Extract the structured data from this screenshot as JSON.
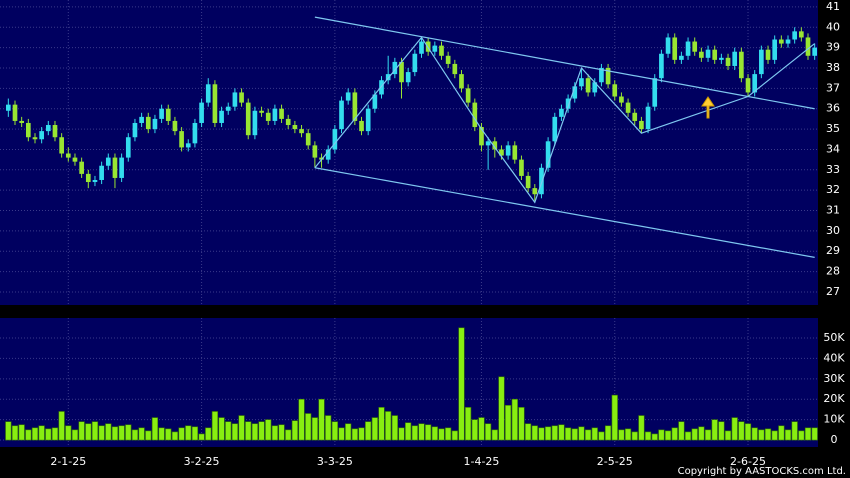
{
  "chart_data": {
    "type": "candlestick",
    "categories": [
      null,
      null,
      null,
      null,
      null,
      null,
      null,
      null,
      null,
      "2-1-25",
      null,
      null,
      null,
      null,
      null,
      null,
      null,
      null,
      null,
      null,
      null,
      null,
      null,
      null,
      null,
      null,
      null,
      null,
      null,
      "3-2-25",
      null,
      null,
      null,
      null,
      null,
      null,
      null,
      null,
      null,
      null,
      null,
      null,
      null,
      null,
      null,
      null,
      null,
      null,
      null,
      "3-3-25",
      null,
      null,
      null,
      null,
      null,
      null,
      null,
      null,
      null,
      null,
      null,
      null,
      null,
      null,
      null,
      null,
      null,
      null,
      null,
      null,
      null,
      "1-4-25",
      null,
      null,
      null,
      null,
      null,
      null,
      null,
      null,
      null,
      null,
      null,
      null,
      null,
      null,
      null,
      null,
      null,
      null,
      null,
      "2-5-25",
      null,
      null,
      null,
      null,
      null,
      null,
      null,
      null,
      null,
      null,
      null,
      null,
      null,
      null,
      null,
      null,
      null,
      null,
      null,
      "2-6-25",
      null,
      null,
      null,
      null,
      null,
      null,
      null,
      null,
      null,
      null
    ],
    "open": [
      35.9,
      36.2,
      35.4,
      35.3,
      34.6,
      34.5,
      34.9,
      35.2,
      34.6,
      33.8,
      33.6,
      33.4,
      32.8,
      32.4,
      32.5,
      33.2,
      33.6,
      32.6,
      33.6,
      34.6,
      35.3,
      35.6,
      35.0,
      35.5,
      36.0,
      35.4,
      34.9,
      34.1,
      34.3,
      35.3,
      36.3,
      37.2,
      35.3,
      35.9,
      36.1,
      36.8,
      36.3,
      34.7,
      35.9,
      35.8,
      35.4,
      36.0,
      35.5,
      35.2,
      35.0,
      34.8,
      34.2,
      33.6,
      33.5,
      34.0,
      35.0,
      36.4,
      36.8,
      35.4,
      34.9,
      36.0,
      36.7,
      37.4,
      37.7,
      38.3,
      37.3,
      37.8,
      38.7,
      39.3,
      38.8,
      39.1,
      38.6,
      38.2,
      37.7,
      37.0,
      36.3,
      35.1,
      34.2,
      34.4,
      34.0,
      33.7,
      34.2,
      33.5,
      32.7,
      32.1,
      31.8,
      33.1,
      34.4,
      35.6,
      36.0,
      36.5,
      37.1,
      37.5,
      36.8,
      37.3,
      38.0,
      37.2,
      36.6,
      36.3,
      35.8,
      35.4,
      35.0,
      36.1,
      37.5,
      38.7,
      39.5,
      38.4,
      38.6,
      39.3,
      38.8,
      38.5,
      38.9,
      38.4,
      38.5,
      38.1,
      38.8,
      37.5,
      36.8,
      37.7,
      38.9,
      38.4,
      39.4,
      39.2,
      39.4,
      39.8,
      39.5,
      38.6
    ],
    "high": [
      36.5,
      36.4,
      35.6,
      35.5,
      34.8,
      35.1,
      35.4,
      35.4,
      34.8,
      34.1,
      33.8,
      33.6,
      33.0,
      32.7,
      33.4,
      33.8,
      33.8,
      33.8,
      34.8,
      35.5,
      35.8,
      35.8,
      35.7,
      36.2,
      36.2,
      35.6,
      35.1,
      34.5,
      35.5,
      36.5,
      37.5,
      37.4,
      36.1,
      36.3,
      37.0,
      37.0,
      36.5,
      36.1,
      36.1,
      36.0,
      36.2,
      36.2,
      35.7,
      35.4,
      35.2,
      35.0,
      34.4,
      33.8,
      34.2,
      35.2,
      36.6,
      37.0,
      37.0,
      35.6,
      36.2,
      36.9,
      37.6,
      38.6,
      38.5,
      38.5,
      38.0,
      38.9,
      39.5,
      39.5,
      39.3,
      39.3,
      38.8,
      38.4,
      37.9,
      37.2,
      36.5,
      35.3,
      34.6,
      34.6,
      34.2,
      34.4,
      34.4,
      33.7,
      32.9,
      32.3,
      33.3,
      34.6,
      35.8,
      36.2,
      36.7,
      37.3,
      38.0,
      37.7,
      37.5,
      38.2,
      38.2,
      37.4,
      36.8,
      36.5,
      36.0,
      35.6,
      36.3,
      37.7,
      38.9,
      39.7,
      39.7,
      38.8,
      39.5,
      39.5,
      39.0,
      39.1,
      39.1,
      38.7,
      38.7,
      39.0,
      39.0,
      37.7,
      37.9,
      39.1,
      39.1,
      39.6,
      39.6,
      39.6,
      40.0,
      40.0,
      39.7,
      39.2
    ],
    "low": [
      35.6,
      35.2,
      35.1,
      34.4,
      34.3,
      34.3,
      34.7,
      34.4,
      33.6,
      33.4,
      33.2,
      32.6,
      32.1,
      32.2,
      32.3,
      33.0,
      32.1,
      32.4,
      33.4,
      34.4,
      35.1,
      34.8,
      34.8,
      35.3,
      35.2,
      34.7,
      33.9,
      33.9,
      34.1,
      35.1,
      36.1,
      35.1,
      35.1,
      35.7,
      35.9,
      36.1,
      34.5,
      34.5,
      35.6,
      35.2,
      35.2,
      35.3,
      35.0,
      34.8,
      34.6,
      34.0,
      33.1,
      33.1,
      33.3,
      33.8,
      34.8,
      36.2,
      35.2,
      34.7,
      34.7,
      35.8,
      36.5,
      37.2,
      37.5,
      36.5,
      37.1,
      37.6,
      38.5,
      38.6,
      38.6,
      38.4,
      38.0,
      37.5,
      36.8,
      36.1,
      34.9,
      33.9,
      33.0,
      33.6,
      33.5,
      33.5,
      33.3,
      32.5,
      31.9,
      31.4,
      31.6,
      32.9,
      34.2,
      35.4,
      35.8,
      36.3,
      36.9,
      36.6,
      36.6,
      37.1,
      37.0,
      36.4,
      36.1,
      35.6,
      35.2,
      34.8,
      34.8,
      35.9,
      37.3,
      38.5,
      38.2,
      38.2,
      38.4,
      38.6,
      38.3,
      38.3,
      38.2,
      38.2,
      37.9,
      37.9,
      37.3,
      36.6,
      36.6,
      37.5,
      38.2,
      38.2,
      39.0,
      39.0,
      39.2,
      39.3,
      38.4,
      38.4
    ],
    "close": [
      36.2,
      35.4,
      35.3,
      34.6,
      34.5,
      34.9,
      35.2,
      34.6,
      33.8,
      33.6,
      33.4,
      32.8,
      32.4,
      32.5,
      33.2,
      33.6,
      32.6,
      33.6,
      34.6,
      35.3,
      35.6,
      35.0,
      35.5,
      36.0,
      35.4,
      34.9,
      34.1,
      34.3,
      35.3,
      36.3,
      37.2,
      35.3,
      35.9,
      36.1,
      36.8,
      36.3,
      34.7,
      35.9,
      35.8,
      35.4,
      36.0,
      35.5,
      35.2,
      35.0,
      34.8,
      34.2,
      33.6,
      33.5,
      34.0,
      35.0,
      36.4,
      36.8,
      35.4,
      34.9,
      36.0,
      36.7,
      37.4,
      37.7,
      38.3,
      37.3,
      37.8,
      38.7,
      39.3,
      38.8,
      39.1,
      38.6,
      38.2,
      37.7,
      37.0,
      36.3,
      35.1,
      34.2,
      34.4,
      34.0,
      33.7,
      34.2,
      33.5,
      32.7,
      32.1,
      31.8,
      33.1,
      34.4,
      35.6,
      36.0,
      36.5,
      37.1,
      37.5,
      36.8,
      37.3,
      38.0,
      37.2,
      36.6,
      36.3,
      35.8,
      35.4,
      35.0,
      36.1,
      37.5,
      38.7,
      39.5,
      38.4,
      38.6,
      39.3,
      38.8,
      38.5,
      38.9,
      38.4,
      38.5,
      38.1,
      38.8,
      37.5,
      36.8,
      37.7,
      38.9,
      38.4,
      39.4,
      39.2,
      39.4,
      39.8,
      39.5,
      38.6,
      39.0
    ],
    "volume": [
      9000,
      7000,
      7500,
      5000,
      6000,
      7000,
      5500,
      6000,
      14000,
      7000,
      5000,
      9000,
      8000,
      9000,
      7000,
      8000,
      6500,
      7000,
      7500,
      5000,
      6000,
      4500,
      11000,
      6000,
      5500,
      4000,
      6000,
      7000,
      6500,
      3000,
      6000,
      14000,
      11000,
      9000,
      8000,
      12000,
      9000,
      8000,
      9000,
      10000,
      7000,
      7500,
      5000,
      9500,
      20000,
      13000,
      11000,
      20000,
      12000,
      9000,
      6000,
      8000,
      5500,
      6000,
      9000,
      11000,
      16000,
      14000,
      12000,
      6000,
      8500,
      7000,
      8000,
      7500,
      6500,
      5500,
      6000,
      4500,
      55000,
      16000,
      10000,
      11000,
      8000,
      5000,
      31000,
      17000,
      20000,
      16000,
      8000,
      7000,
      6000,
      6500,
      7000,
      7500,
      6000,
      5500,
      6500,
      5000,
      6000,
      4000,
      7000,
      22000,
      5000,
      5500,
      4000,
      12000,
      4000,
      3000,
      5000,
      4500,
      6000,
      9000,
      4000,
      5500,
      6500,
      5000,
      10000,
      9000,
      4500,
      11000,
      9000,
      8000,
      6000,
      5000,
      5500,
      4500,
      7000,
      5000,
      9000,
      4500,
      6000,
      6000
    ],
    "ylim": [
      26.36,
      41.34
    ],
    "yticks": [
      27,
      28,
      29,
      30,
      31,
      32,
      33,
      34,
      35,
      36,
      37,
      38,
      39,
      40,
      41
    ],
    "volume_ylim": [
      -3400,
      59800
    ],
    "volume_yticks": [
      0,
      {
        "value": 10000,
        "label": "10K"
      },
      {
        "value": 20000,
        "label": "20K"
      },
      {
        "value": 30000,
        "label": "30K"
      },
      {
        "value": 40000,
        "label": "40K"
      },
      {
        "value": 50000,
        "label": "50K"
      }
    ],
    "up_color": "#33ddee",
    "down_color": "#99e632",
    "volume_color": "#88ee11",
    "line_color": "#7fc8f0",
    "trendlines": [
      {
        "x": [
          46,
          121
        ],
        "y": [
          40.5,
          36.0
        ]
      },
      {
        "x": [
          46,
          121
        ],
        "y": [
          33.1,
          28.7
        ]
      },
      {
        "x": [
          46,
          62,
          71,
          79,
          86,
          95,
          111,
          121
        ],
        "y": [
          33.1,
          39.5,
          35.0,
          31.4,
          38.0,
          34.8,
          36.6,
          39.2
        ]
      }
    ],
    "grid": true
  },
  "copyright": "Copyright by AASTOCKS.com Ltd."
}
